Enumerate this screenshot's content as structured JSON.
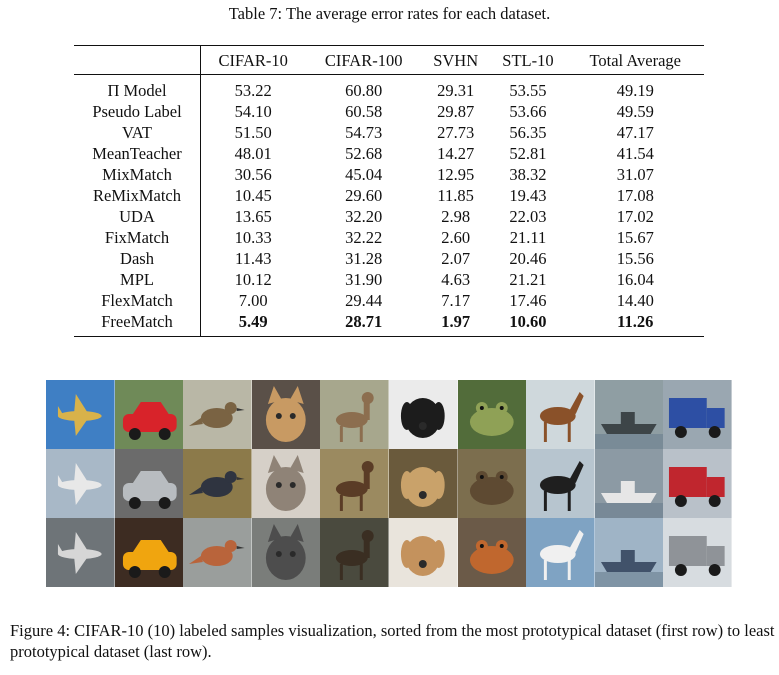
{
  "table": {
    "caption": "Table 7: The average error rates for each dataset.",
    "headers": [
      "",
      "CIFAR-10",
      "CIFAR-100",
      "SVHN",
      "STL-10",
      "Total Average"
    ],
    "rows": [
      {
        "method": "Π Model",
        "values": [
          "53.22",
          "60.80",
          "29.31",
          "53.55",
          "49.19"
        ]
      },
      {
        "method": "Pseudo Label",
        "values": [
          "54.10",
          "60.58",
          "29.87",
          "53.66",
          "49.59"
        ]
      },
      {
        "method": "VAT",
        "values": [
          "51.50",
          "54.73",
          "27.73",
          "56.35",
          "47.17"
        ]
      },
      {
        "method": "MeanTeacher",
        "values": [
          "48.01",
          "52.68",
          "14.27",
          "52.81",
          "41.54"
        ]
      },
      {
        "method": "MixMatch",
        "values": [
          "30.56",
          "45.04",
          "12.95",
          "38.32",
          "31.07"
        ]
      },
      {
        "method": "ReMixMatch",
        "values": [
          "10.45",
          "29.60",
          "11.85",
          "19.43",
          "17.08"
        ]
      },
      {
        "method": "UDA",
        "values": [
          "13.65",
          "32.20",
          "2.98",
          "22.03",
          "17.02"
        ]
      },
      {
        "method": "FixMatch",
        "values": [
          "10.33",
          "32.22",
          "2.60",
          "21.11",
          "15.67"
        ]
      },
      {
        "method": "Dash",
        "values": [
          "11.43",
          "31.28",
          "2.07",
          "20.46",
          "15.56"
        ]
      },
      {
        "method": "MPL",
        "values": [
          "10.12",
          "31.90",
          "4.63",
          "21.21",
          "16.04"
        ]
      },
      {
        "method": "FlexMatch",
        "values": [
          "7.00",
          "29.44",
          "7.17",
          "17.46",
          "14.40"
        ]
      },
      {
        "method": "FreeMatch",
        "values": [
          "5.49",
          "28.71",
          "1.97",
          "10.60",
          "11.26"
        ],
        "bold": true
      }
    ]
  },
  "figure": {
    "caption": "Figure 4: CIFAR-10 (10) labeled samples visualization, sorted from the most prototypical dataset (first row) to least prototypical dataset (last row).",
    "classes": [
      "airplane",
      "automobile",
      "bird",
      "cat",
      "deer",
      "dog",
      "frog",
      "horse",
      "ship",
      "truck"
    ],
    "tiles": [
      [
        {
          "icon": "airplane-image",
          "bg": "#3f7fc4",
          "fg": "#d8b24a"
        },
        {
          "icon": "automobile-image",
          "bg": "#6f8a58",
          "fg": "#d8232a"
        },
        {
          "icon": "bird-image",
          "bg": "#b9b7a6",
          "fg": "#7a6343"
        },
        {
          "icon": "cat-image",
          "bg": "#5a5048",
          "fg": "#c89a63"
        },
        {
          "icon": "deer-image",
          "bg": "#a7a78d",
          "fg": "#8c6e4f"
        },
        {
          "icon": "dog-image",
          "bg": "#ebebeb",
          "fg": "#1c1c1c"
        },
        {
          "icon": "frog-image",
          "bg": "#526c3a",
          "fg": "#8fa156"
        },
        {
          "icon": "horse-image",
          "bg": "#cfd8dc",
          "fg": "#8a5129"
        },
        {
          "icon": "ship-image",
          "bg": "#8f9ea3",
          "fg": "#3d4548"
        },
        {
          "icon": "truck-image",
          "bg": "#9aa7b1",
          "fg": "#2d4fa4"
        }
      ],
      [
        {
          "icon": "airplane-image",
          "bg": "#a8b8c7",
          "fg": "#e8e8e8"
        },
        {
          "icon": "automobile-image",
          "bg": "#6b6b6b",
          "fg": "#b8bcc0"
        },
        {
          "icon": "bird-image",
          "bg": "#8c7a4a",
          "fg": "#2f3440"
        },
        {
          "icon": "cat-image",
          "bg": "#d6d0c8",
          "fg": "#8f8377"
        },
        {
          "icon": "deer-image",
          "bg": "#9b8a60",
          "fg": "#5a3c26"
        },
        {
          "icon": "dog-image",
          "bg": "#6a5a3c",
          "fg": "#c9a26a"
        },
        {
          "icon": "frog-image",
          "bg": "#7c6e4e",
          "fg": "#5e4a32"
        },
        {
          "icon": "horse-image",
          "bg": "#b7c5cf",
          "fg": "#1f1f1f"
        },
        {
          "icon": "ship-image",
          "bg": "#8c9aa4",
          "fg": "#e6e6e6"
        },
        {
          "icon": "truck-image",
          "bg": "#b9c1c9",
          "fg": "#c0262e"
        }
      ],
      [
        {
          "icon": "airplane-image",
          "bg": "#6e7478",
          "fg": "#d6d6d6"
        },
        {
          "icon": "automobile-image",
          "bg": "#3d2c22",
          "fg": "#f0a50f"
        },
        {
          "icon": "bird-image",
          "bg": "#9a9e9c",
          "fg": "#b9643b"
        },
        {
          "icon": "cat-image",
          "bg": "#7a7d7a",
          "fg": "#4d4d4d"
        },
        {
          "icon": "deer-image",
          "bg": "#4a4a3e",
          "fg": "#3a2e22"
        },
        {
          "icon": "dog-image",
          "bg": "#e9e4dc",
          "fg": "#c4925d"
        },
        {
          "icon": "frog-image",
          "bg": "#6b5a48",
          "fg": "#c0672e"
        },
        {
          "icon": "horse-image",
          "bg": "#7fa3c3",
          "fg": "#f0f0f0"
        },
        {
          "icon": "ship-image",
          "bg": "#9fb4c6",
          "fg": "#41526a"
        },
        {
          "icon": "truck-image",
          "bg": "#d7dce0",
          "fg": "#8f9398"
        }
      ]
    ]
  }
}
